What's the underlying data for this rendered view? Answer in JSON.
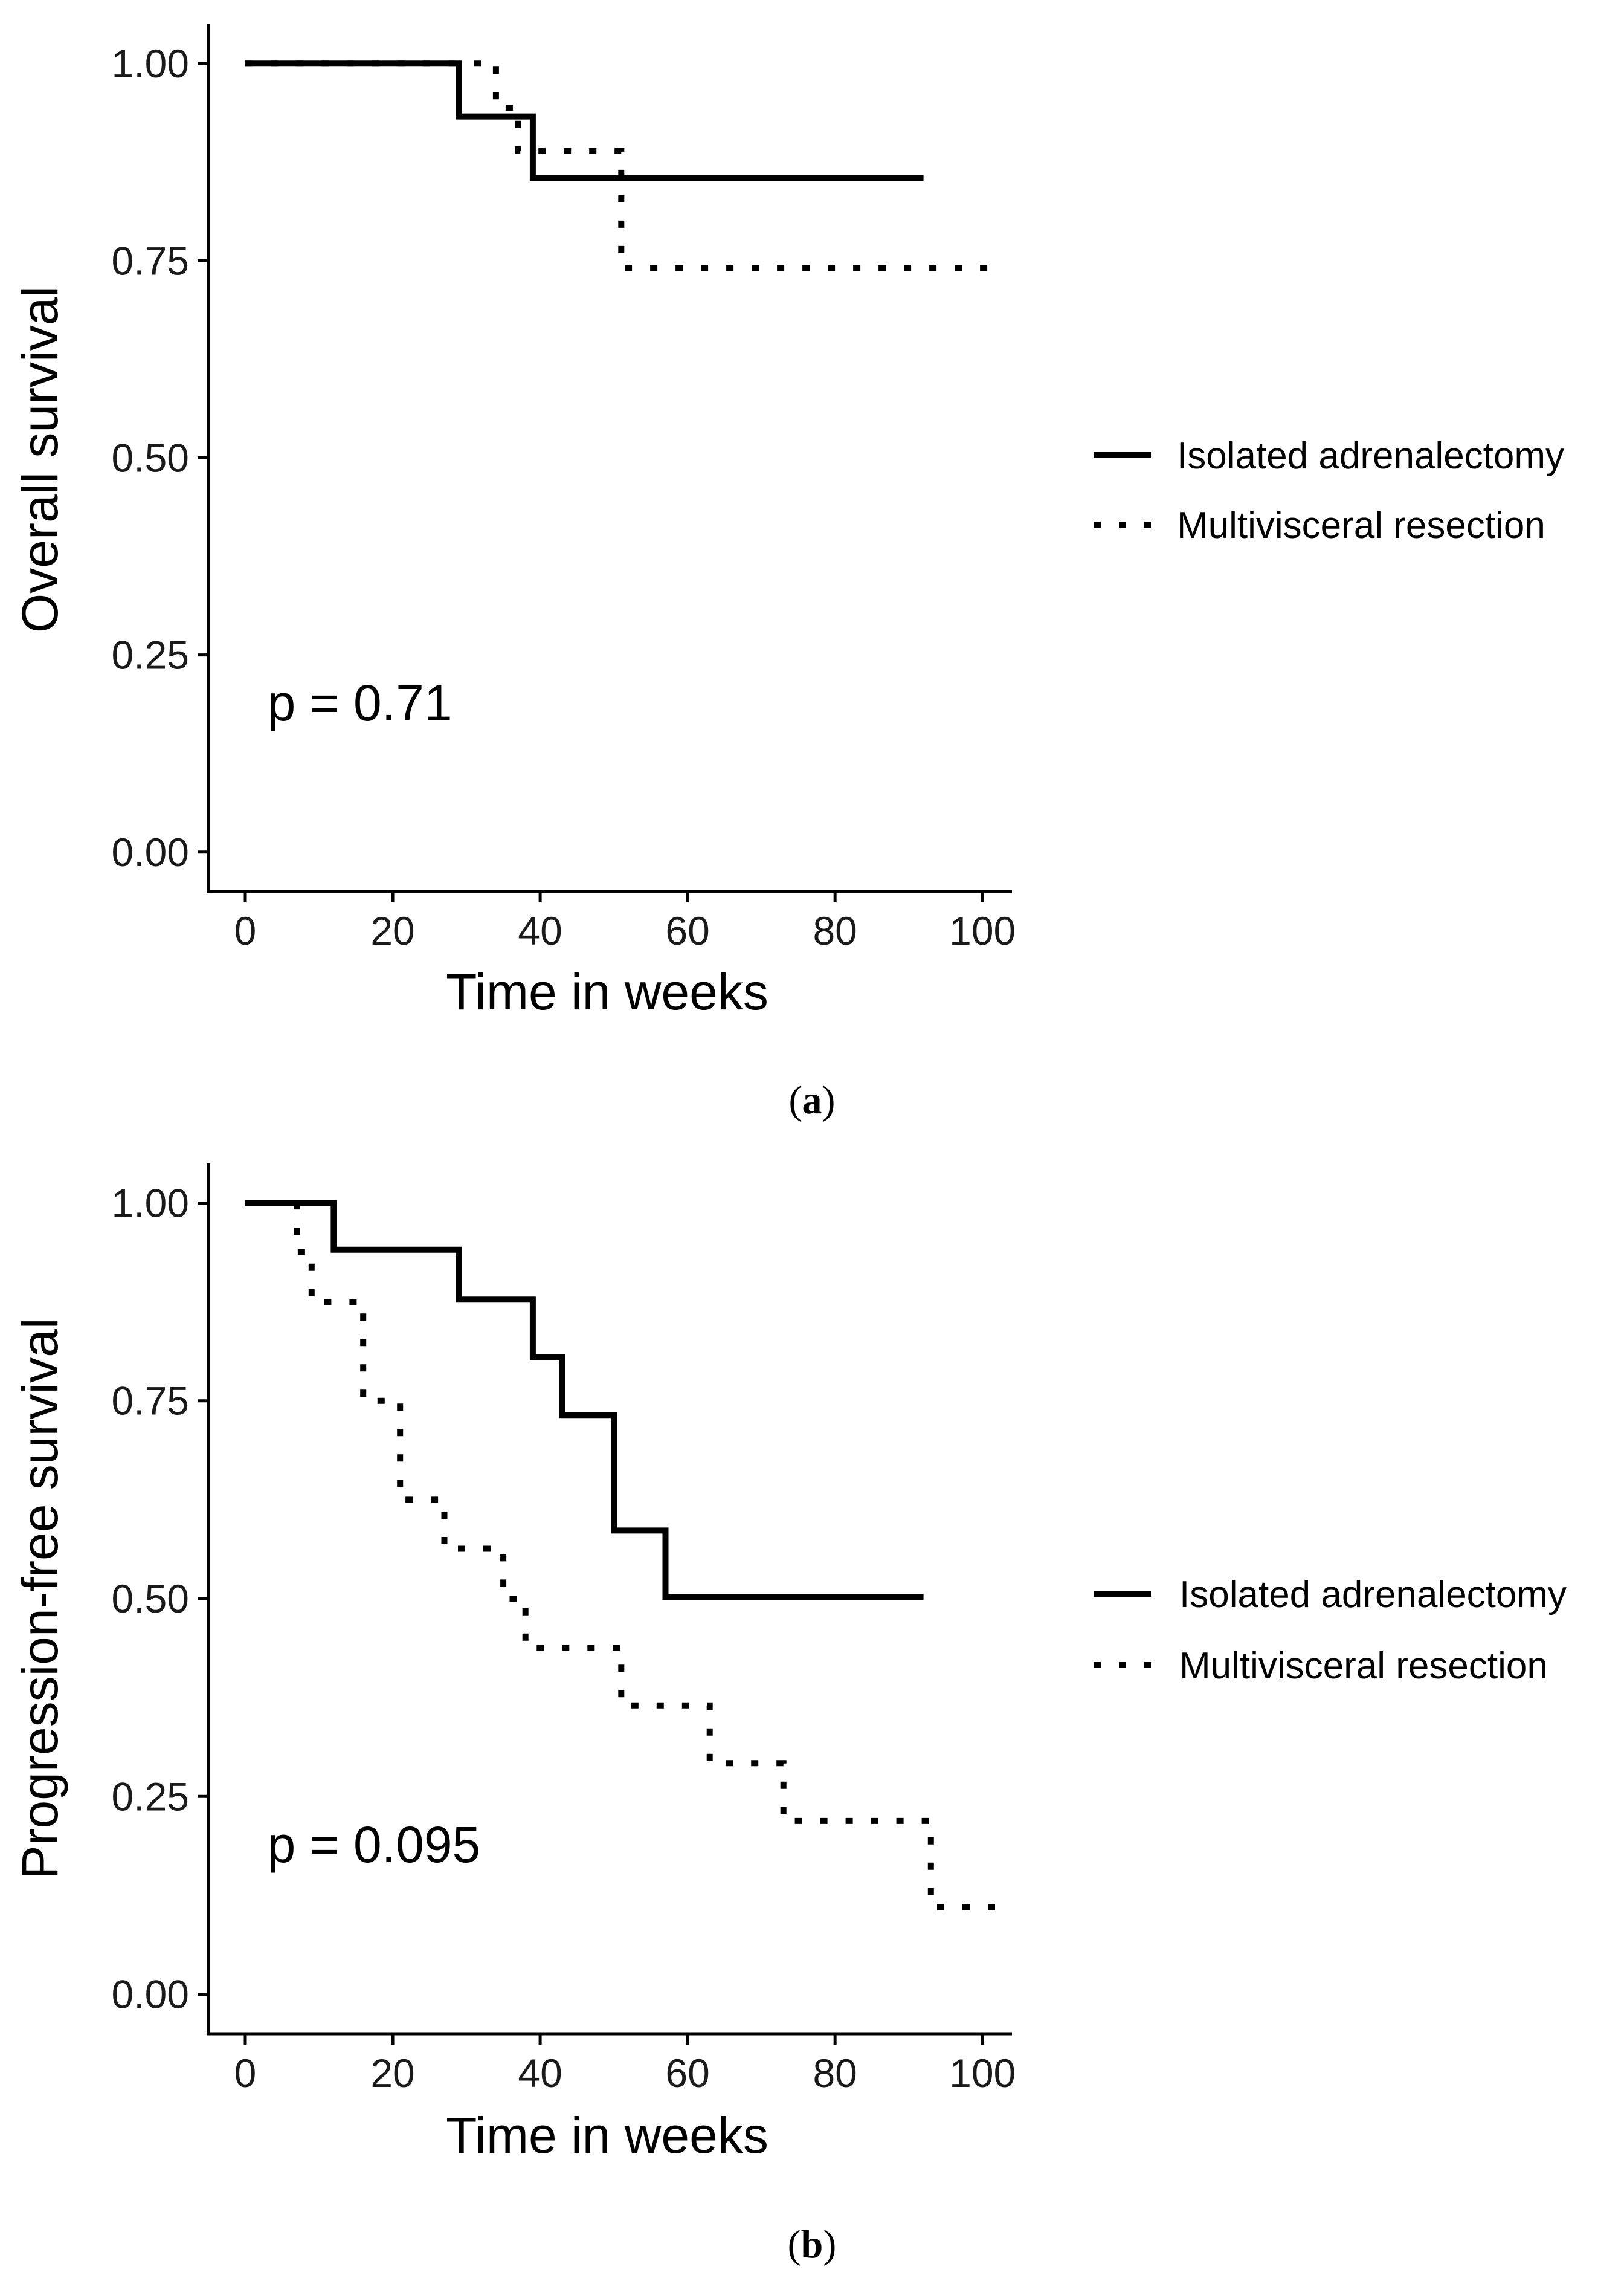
{
  "chart_data": [
    {
      "type": "line",
      "panel": "a",
      "caption": "a",
      "xlabel": "Time in weeks",
      "ylabel": "Overall survival",
      "xlim": [
        -5,
        104
      ],
      "ylim": [
        -0.05,
        1.05
      ],
      "xticks": [
        0,
        20,
        40,
        60,
        80,
        100
      ],
      "yticks": [
        0.0,
        0.25,
        0.5,
        0.75,
        1.0
      ],
      "ytick_labels": [
        "0.00",
        "0.25",
        "0.50",
        "0.75",
        "1.00"
      ],
      "annotation": "p = 0.71",
      "annotation_x": 3,
      "annotation_y": 0.19,
      "legend_position": "right",
      "series": [
        {
          "name": "Isolated adrenalectomy",
          "style": "solid",
          "x": [
            0,
            29,
            29,
            39,
            39,
            92
          ],
          "y": [
            1.0,
            1.0,
            0.933,
            0.933,
            0.855,
            0.855
          ]
        },
        {
          "name": "Multivisceral resection",
          "style": "dotted",
          "x": [
            0,
            34,
            34,
            37,
            37,
            51,
            51,
            102
          ],
          "y": [
            1.0,
            1.0,
            0.944,
            0.944,
            0.889,
            0.889,
            0.741,
            0.741
          ]
        }
      ]
    },
    {
      "type": "line",
      "panel": "b",
      "caption": "b",
      "xlabel": "Time in weeks",
      "ylabel": "Progression-free survival",
      "xlim": [
        -5,
        104
      ],
      "ylim": [
        -0.05,
        1.05
      ],
      "xticks": [
        0,
        20,
        40,
        60,
        80,
        100
      ],
      "yticks": [
        0.0,
        0.25,
        0.5,
        0.75,
        1.0
      ],
      "ytick_labels": [
        "0.00",
        "0.25",
        "0.50",
        "0.75",
        "1.00"
      ],
      "annotation": "p = 0.095",
      "annotation_x": 3,
      "annotation_y": 0.19,
      "legend_position": "right",
      "series": [
        {
          "name": "Isolated adrenalectomy",
          "style": "solid",
          "x": [
            0,
            12,
            12,
            29,
            29,
            39,
            39,
            43,
            43,
            50,
            50,
            57,
            57,
            92
          ],
          "y": [
            1.0,
            1.0,
            0.941,
            0.941,
            0.878,
            0.878,
            0.805,
            0.805,
            0.732,
            0.732,
            0.586,
            0.586,
            0.502,
            0.502
          ]
        },
        {
          "name": "Multivisceral resection",
          "style": "dotted",
          "x": [
            0,
            7,
            7,
            9,
            9,
            16,
            16,
            21,
            21,
            27,
            27,
            35,
            35,
            38,
            38,
            51,
            51,
            63,
            63,
            73,
            73,
            93,
            93,
            102
          ],
          "y": [
            1.0,
            1.0,
            0.938,
            0.938,
            0.875,
            0.875,
            0.75,
            0.75,
            0.625,
            0.625,
            0.563,
            0.563,
            0.5,
            0.5,
            0.438,
            0.438,
            0.365,
            0.365,
            0.292,
            0.292,
            0.219,
            0.219,
            0.11,
            0.11
          ]
        }
      ]
    }
  ]
}
